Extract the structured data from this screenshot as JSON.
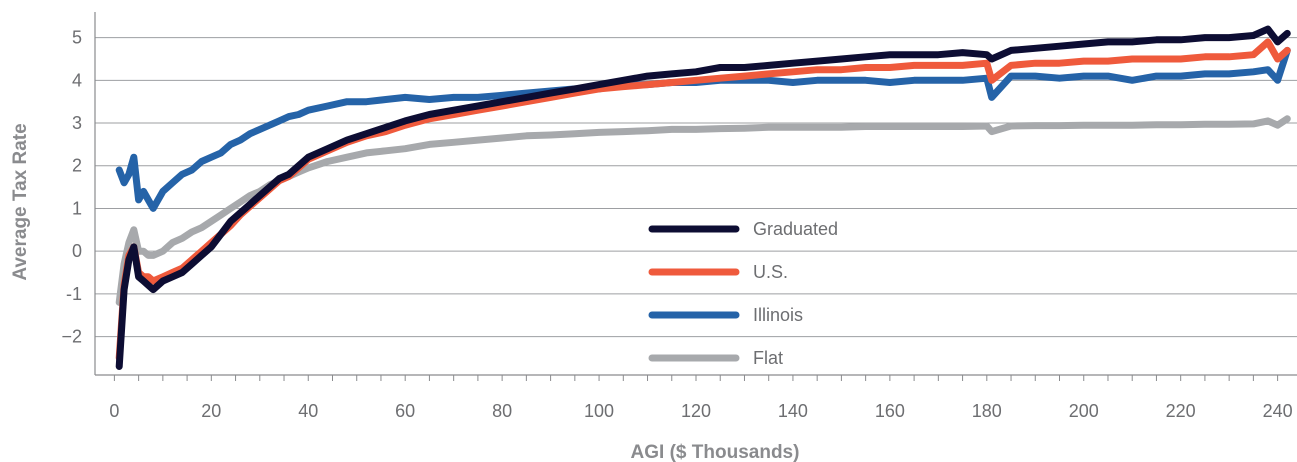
{
  "chart_data": {
    "type": "line",
    "xlabel": "AGI ($ Thousands)",
    "ylabel": "Average Tax Rate",
    "xlim": [
      -4,
      244
    ],
    "ylim": [
      -2.9,
      5.6
    ],
    "x_ticks": [
      0,
      20,
      40,
      60,
      80,
      100,
      120,
      140,
      160,
      180,
      200,
      220,
      240
    ],
    "y_ticks": [
      -2,
      -1,
      0,
      1,
      2,
      3,
      4,
      5
    ],
    "x_tick_labels": [
      "0",
      "20",
      "40",
      "60",
      "80",
      "100",
      "120",
      "140",
      "160",
      "180",
      "200",
      "220",
      "240"
    ],
    "y_tick_labels": [
      "−2",
      "-1",
      "0",
      "1",
      "2",
      "3",
      "4",
      "5"
    ],
    "grid": "horizontal",
    "legend_position": "center",
    "x": [
      1,
      2,
      3,
      4,
      5,
      6,
      7,
      8,
      10,
      12,
      14,
      16,
      18,
      20,
      22,
      24,
      26,
      28,
      30,
      32,
      34,
      36,
      38,
      40,
      44,
      48,
      52,
      56,
      60,
      65,
      70,
      75,
      80,
      85,
      90,
      95,
      100,
      105,
      110,
      115,
      120,
      125,
      130,
      135,
      140,
      145,
      150,
      155,
      160,
      165,
      170,
      175,
      180,
      181,
      185,
      190,
      195,
      200,
      205,
      210,
      215,
      220,
      225,
      230,
      235,
      238,
      240,
      242
    ],
    "series": [
      {
        "name": "Graduated",
        "color": "#0d0d33",
        "values": [
          -2.7,
          -0.9,
          -0.2,
          0.1,
          -0.6,
          -0.7,
          -0.8,
          -0.9,
          -0.7,
          -0.6,
          -0.5,
          -0.3,
          -0.1,
          0.1,
          0.4,
          0.7,
          0.9,
          1.1,
          1.3,
          1.5,
          1.7,
          1.8,
          2.0,
          2.2,
          2.4,
          2.6,
          2.75,
          2.9,
          3.05,
          3.2,
          3.3,
          3.4,
          3.5,
          3.6,
          3.7,
          3.8,
          3.9,
          4.0,
          4.1,
          4.15,
          4.2,
          4.3,
          4.3,
          4.35,
          4.4,
          4.45,
          4.5,
          4.55,
          4.6,
          4.6,
          4.6,
          4.65,
          4.6,
          4.5,
          4.7,
          4.75,
          4.8,
          4.85,
          4.9,
          4.9,
          4.95,
          4.95,
          5.0,
          5.0,
          5.05,
          5.2,
          4.9,
          5.1
        ]
      },
      {
        "name": "U.S.",
        "color": "#ef5a3c",
        "values": [
          -2.5,
          -0.8,
          -0.1,
          0.1,
          -0.5,
          -0.6,
          -0.6,
          -0.7,
          -0.6,
          -0.5,
          -0.4,
          -0.2,
          0.0,
          0.2,
          0.4,
          0.6,
          0.85,
          1.05,
          1.25,
          1.45,
          1.65,
          1.75,
          1.95,
          2.15,
          2.35,
          2.55,
          2.7,
          2.8,
          2.95,
          3.1,
          3.2,
          3.3,
          3.4,
          3.5,
          3.6,
          3.7,
          3.8,
          3.85,
          3.9,
          3.95,
          4.0,
          4.05,
          4.1,
          4.15,
          4.2,
          4.25,
          4.25,
          4.3,
          4.3,
          4.35,
          4.35,
          4.35,
          4.4,
          4.0,
          4.35,
          4.4,
          4.4,
          4.45,
          4.45,
          4.5,
          4.5,
          4.5,
          4.55,
          4.55,
          4.6,
          4.9,
          4.5,
          4.7
        ]
      },
      {
        "name": "Illinois",
        "color": "#2563a8",
        "values": [
          1.9,
          1.6,
          1.8,
          2.2,
          1.2,
          1.4,
          1.2,
          1.0,
          1.4,
          1.6,
          1.8,
          1.9,
          2.1,
          2.2,
          2.3,
          2.5,
          2.6,
          2.75,
          2.85,
          2.95,
          3.05,
          3.15,
          3.2,
          3.3,
          3.4,
          3.5,
          3.5,
          3.55,
          3.6,
          3.55,
          3.6,
          3.6,
          3.65,
          3.7,
          3.75,
          3.8,
          3.8,
          3.9,
          3.9,
          3.95,
          3.95,
          4.0,
          4.0,
          4.0,
          3.95,
          4.0,
          4.0,
          4.0,
          3.95,
          4.0,
          4.0,
          4.0,
          4.05,
          3.6,
          4.1,
          4.1,
          4.05,
          4.1,
          4.1,
          4.0,
          4.1,
          4.1,
          4.15,
          4.15,
          4.2,
          4.25,
          4.0,
          4.7
        ]
      },
      {
        "name": "Flat",
        "color": "#a7a9ac",
        "values": [
          -1.2,
          -0.3,
          0.2,
          0.5,
          0.0,
          0.0,
          -0.1,
          -0.1,
          0.0,
          0.2,
          0.3,
          0.45,
          0.55,
          0.7,
          0.85,
          1.0,
          1.15,
          1.3,
          1.4,
          1.55,
          1.65,
          1.75,
          1.85,
          1.95,
          2.1,
          2.2,
          2.3,
          2.35,
          2.4,
          2.5,
          2.55,
          2.6,
          2.65,
          2.7,
          2.72,
          2.75,
          2.78,
          2.8,
          2.82,
          2.85,
          2.85,
          2.87,
          2.88,
          2.9,
          2.9,
          2.9,
          2.9,
          2.92,
          2.92,
          2.92,
          2.92,
          2.92,
          2.93,
          2.8,
          2.93,
          2.94,
          2.94,
          2.95,
          2.95,
          2.95,
          2.96,
          2.96,
          2.97,
          2.97,
          2.98,
          3.05,
          2.95,
          3.1
        ]
      }
    ]
  }
}
